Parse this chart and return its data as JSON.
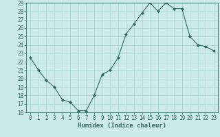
{
  "xlabel": "Humidex (Indice chaleur)",
  "x": [
    0,
    1,
    2,
    3,
    4,
    5,
    6,
    7,
    8,
    9,
    10,
    11,
    12,
    13,
    14,
    15,
    16,
    17,
    18,
    19,
    20,
    21,
    22,
    23
  ],
  "y": [
    22.5,
    21.0,
    19.8,
    19.0,
    17.5,
    17.2,
    16.2,
    16.2,
    18.0,
    20.5,
    21.0,
    22.5,
    25.3,
    26.5,
    27.8,
    29.0,
    28.0,
    29.0,
    28.3,
    28.3,
    25.0,
    24.0,
    23.8,
    23.3
  ],
  "line_color": "#2e6b5e",
  "marker": "D",
  "marker_size": 2,
  "bg_color": "#cceaea",
  "grid_color": "#aad4d4",
  "ylim": [
    16,
    29
  ],
  "xlim": [
    -0.5,
    23.5
  ],
  "yticks": [
    16,
    17,
    18,
    19,
    20,
    21,
    22,
    23,
    24,
    25,
    26,
    27,
    28,
    29
  ],
  "xticks": [
    0,
    1,
    2,
    3,
    4,
    5,
    6,
    7,
    8,
    9,
    10,
    11,
    12,
    13,
    14,
    15,
    16,
    17,
    18,
    19,
    20,
    21,
    22,
    23
  ],
  "tick_fontsize": 5.5,
  "label_fontsize": 6.5,
  "axis_color": "#2e6b5e"
}
